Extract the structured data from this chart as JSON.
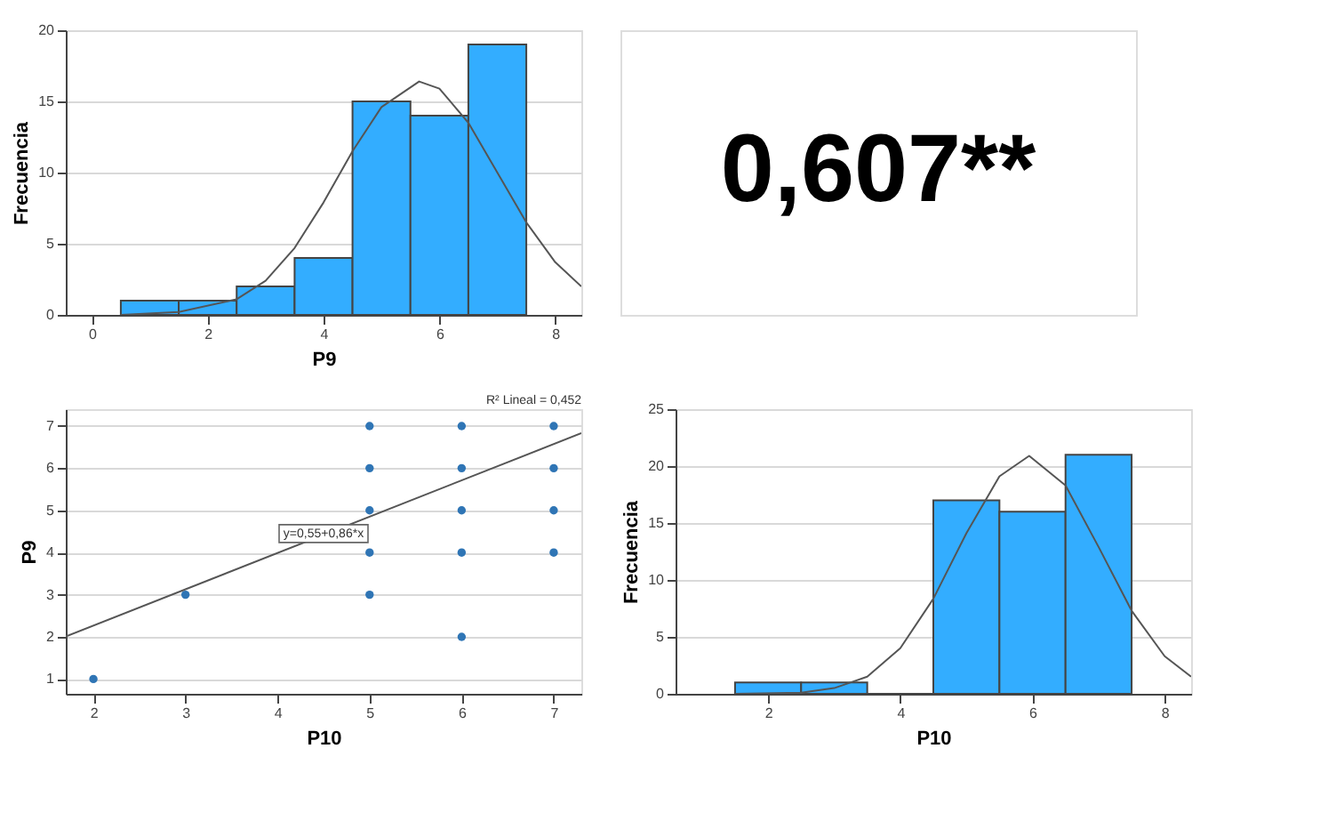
{
  "chart_data": [
    {
      "type": "histogram",
      "xlabel": "P9",
      "ylabel": "Frecuencia",
      "xlim": [
        -0.45,
        8.45
      ],
      "ylim": [
        0,
        20
      ],
      "xticks": [
        0,
        2,
        4,
        6,
        8
      ],
      "yticks": [
        0,
        5,
        10,
        15,
        20
      ],
      "grid": "y",
      "series": [
        {
          "type": "histogram",
          "color": "#33adff",
          "bins": [
            0.5,
            1.5,
            2.5,
            3.5,
            4.5,
            5.5,
            6.5,
            7.5
          ],
          "values": [
            1,
            1,
            2,
            4,
            15,
            14,
            19
          ]
        },
        {
          "type": "line",
          "color": "#555555",
          "x": [
            0.5,
            1.5,
            2.5,
            3,
            3.5,
            4,
            4.5,
            5,
            5.65,
            6,
            6.5,
            7,
            7.5,
            8,
            8.45
          ],
          "values": [
            0,
            0.2,
            1.1,
            2.4,
            4.7,
            7.9,
            11.5,
            14.6,
            16.4,
            15.9,
            13.5,
            10,
            6.5,
            3.7,
            2
          ]
        }
      ]
    },
    {
      "type": "other",
      "annotations": [
        "0,607**"
      ]
    },
    {
      "type": "scatter",
      "xlabel": "P10",
      "ylabel": "P9",
      "xlim": [
        1.7,
        7.3
      ],
      "ylim": [
        0.65,
        7.4
      ],
      "xticks": [
        2,
        3,
        4,
        5,
        6,
        7
      ],
      "yticks": [
        1,
        2,
        3,
        4,
        5,
        6,
        7
      ],
      "grid": "y",
      "annotations": [
        "R² Lineal = 0,452",
        {
          "text": "y=0,55+0,86*x",
          "x": 4.5,
          "y": 4.45
        }
      ],
      "series": [
        {
          "type": "scatter",
          "color": "#2f75b5",
          "marker": "circle",
          "x": [
            2,
            3,
            5,
            5,
            5,
            5,
            5,
            6,
            6,
            6,
            6,
            6,
            7,
            7,
            7,
            7
          ],
          "values": [
            1,
            3,
            7,
            6,
            5,
            4,
            3,
            7,
            6,
            5,
            4,
            2,
            7,
            6,
            5,
            4
          ]
        },
        {
          "type": "line",
          "color": "#555555",
          "x": [
            1.7,
            7.3
          ],
          "values": [
            2.01,
            6.83
          ]
        }
      ]
    },
    {
      "type": "histogram",
      "xlabel": "P10",
      "ylabel": "Frecuencia",
      "xlim": [
        0.6,
        8.4
      ],
      "ylim": [
        0,
        25
      ],
      "xticks": [
        2,
        4,
        6,
        8
      ],
      "yticks": [
        0,
        5,
        10,
        15,
        20,
        25
      ],
      "grid": "y",
      "series": [
        {
          "type": "histogram",
          "color": "#33adff",
          "bins": [
            1.5,
            2.5,
            3.5,
            4.5,
            5.5,
            6.5,
            7.5
          ],
          "values": [
            1,
            1,
            0,
            17,
            16,
            21
          ]
        },
        {
          "type": "line",
          "color": "#555555",
          "x": [
            1.5,
            2.5,
            3,
            3.5,
            4,
            4.5,
            5,
            5.5,
            5.95,
            6.5,
            7,
            7.5,
            8,
            8.4
          ],
          "values": [
            0,
            0.1,
            0.5,
            1.5,
            4,
            8.35,
            14.1,
            19.1,
            20.9,
            18.3,
            12.9,
            7.3,
            3.3,
            1.5
          ]
        }
      ]
    }
  ]
}
